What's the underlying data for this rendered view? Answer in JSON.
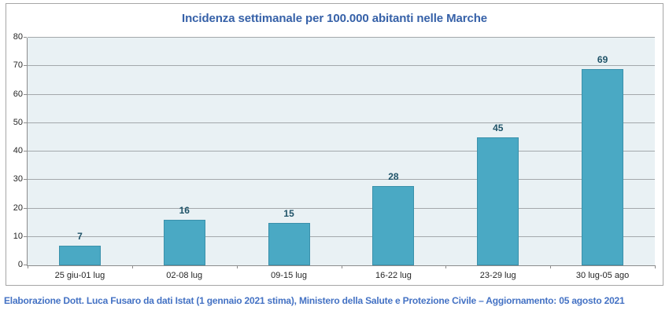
{
  "title": "Incidenza settimanale per 100.000 abitanti nelle Marche",
  "footer": "Elaborazione Dott. Luca Fusaro da dati Istat (1 gennaio 2021 stima), Ministero della Salute e Protezione Civile – Aggiornamento: 05 agosto 2021",
  "chart_data": {
    "type": "bar",
    "title": "Incidenza settimanale per 100.000 abitanti nelle Marche",
    "categories": [
      "25 giu-01 lug",
      "02-08 lug",
      "09-15 lug",
      "16-22 lug",
      "23-29 lug",
      "30 lug-05 ago"
    ],
    "values": [
      7,
      16,
      15,
      28,
      45,
      69
    ],
    "data_labels": [
      "7",
      "16",
      "15",
      "28",
      "45",
      "69"
    ],
    "xlabel": "",
    "ylabel": "",
    "ylim": [
      0,
      80
    ],
    "yticks": [
      0,
      10,
      20,
      30,
      40,
      50,
      60,
      70,
      80
    ],
    "grid": "horizontal",
    "legend": "none",
    "bar_gap_ratio": 0.6,
    "colors": {
      "bar_fill": "#4aa9c4",
      "bar_border": "#3a91ab",
      "plot_bg": "#e9f1f4",
      "gridline": "#a3a8ab",
      "axis_line": "#8c8c8c",
      "title_text": "#3661a8",
      "footer_text": "#4472c4",
      "value_label": "#1f5368",
      "tick_label": "#262626",
      "chart_border": "#a6a6a6"
    }
  }
}
